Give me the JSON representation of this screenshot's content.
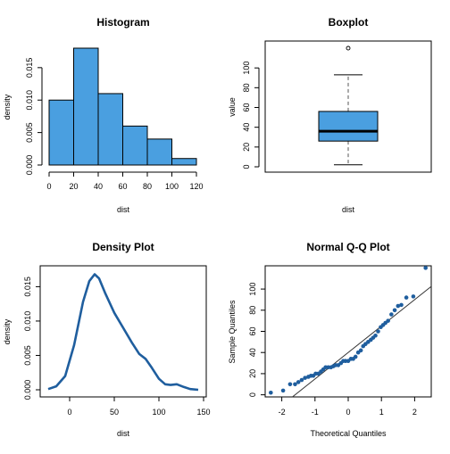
{
  "colors": {
    "bar_fill": "#4A9FE0",
    "density_line": "#1F5E9E",
    "qq_point": "#1F5E9E",
    "ref_line": "#333333"
  },
  "chart_data": [
    {
      "type": "bar",
      "title": "Histogram",
      "xlabel": "dist",
      "ylabel": "density",
      "bins": [
        [
          0,
          20
        ],
        [
          20,
          40
        ],
        [
          40,
          60
        ],
        [
          60,
          80
        ],
        [
          80,
          100
        ],
        [
          100,
          120
        ]
      ],
      "values": [
        0.01,
        0.018,
        0.011,
        0.006,
        0.004,
        0.001
      ],
      "xlim": [
        0,
        120
      ],
      "ylim": [
        0,
        0.018
      ],
      "xticks": [
        "0",
        "20",
        "40",
        "60",
        "80",
        "100",
        "120"
      ],
      "yticks": [
        "0.000",
        "0.005",
        "0.010",
        "0.015"
      ]
    },
    {
      "type": "boxplot",
      "title": "Boxplot",
      "xlabel": "dist",
      "ylabel": "value",
      "whisker_low": 2,
      "q1": 26,
      "median": 36,
      "q3": 56,
      "whisker_high": 93,
      "outliers": [
        120
      ],
      "ylim": [
        0,
        120
      ],
      "yticks": [
        "0",
        "20",
        "40",
        "60",
        "80",
        "100"
      ]
    },
    {
      "type": "line",
      "title": "Density Plot",
      "xlabel": "dist",
      "ylabel": "density",
      "x": [
        -24,
        -15,
        -5,
        5,
        15,
        22,
        28,
        33,
        40,
        50,
        60,
        70,
        78,
        85,
        92,
        100,
        107,
        113,
        120,
        128,
        135,
        144
      ],
      "y": [
        0.0001,
        0.0005,
        0.002,
        0.0065,
        0.0128,
        0.0158,
        0.0168,
        0.0162,
        0.014,
        0.0112,
        0.009,
        0.0068,
        0.0052,
        0.0045,
        0.0032,
        0.0016,
        0.0008,
        0.0007,
        0.0008,
        0.0004,
        0.0001,
        0.0
      ],
      "xlim": [
        -30,
        150
      ],
      "ylim": [
        0,
        0.017
      ],
      "xticks": [
        "0",
        "50",
        "100",
        "150"
      ],
      "yticks": [
        "0.000",
        "0.005",
        "0.010",
        "0.015"
      ]
    },
    {
      "type": "scatter",
      "title": "Normal Q-Q Plot",
      "xlabel": "Theoretical Quantiles",
      "ylabel": "Sample Quantiles",
      "x": [
        -2.33,
        -1.96,
        -1.75,
        -1.6,
        -1.5,
        -1.4,
        -1.3,
        -1.2,
        -1.12,
        -1.05,
        -0.98,
        -0.9,
        -0.82,
        -0.75,
        -0.68,
        -0.6,
        -0.52,
        -0.45,
        -0.38,
        -0.3,
        -0.22,
        -0.15,
        -0.08,
        0.0,
        0.08,
        0.15,
        0.22,
        0.3,
        0.38,
        0.45,
        0.52,
        0.6,
        0.68,
        0.75,
        0.82,
        0.9,
        0.98,
        1.05,
        1.12,
        1.2,
        1.3,
        1.4,
        1.5,
        1.6,
        1.75,
        1.96,
        2.33
      ],
      "y": [
        2,
        4,
        10,
        10,
        12,
        14,
        16,
        17,
        18,
        18,
        20,
        20,
        22,
        24,
        26,
        26,
        26,
        27,
        28,
        28,
        30,
        32,
        32,
        32,
        34,
        34,
        36,
        40,
        42,
        46,
        48,
        50,
        52,
        54,
        56,
        60,
        64,
        66,
        68,
        70,
        76,
        80,
        84,
        85,
        92,
        93,
        120
      ],
      "ref_line": {
        "intercept": 40,
        "slope": 25
      },
      "xlim": [
        -2.5,
        2.5
      ],
      "ylim": [
        -2,
        122
      ],
      "xticks": [
        "-2",
        "-1",
        "0",
        "1",
        "2"
      ],
      "yticks": [
        "0",
        "20",
        "40",
        "60",
        "80",
        "100"
      ]
    }
  ]
}
